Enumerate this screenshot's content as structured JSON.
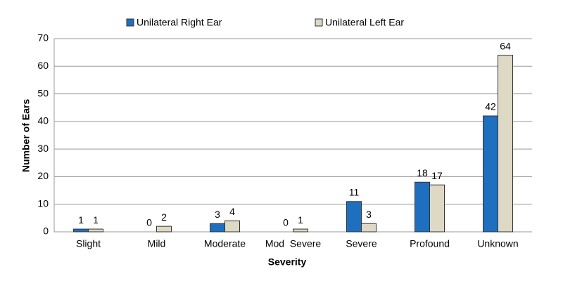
{
  "chart_data": {
    "type": "bar",
    "x_label": "Severity",
    "y_label": "Number of Ears",
    "categories": [
      "Slight",
      "Mild",
      "Moderate",
      "Mod  Severe",
      "Severe",
      "Profound",
      "Unknown"
    ],
    "series": [
      {
        "name": "Unilateral Right Ear",
        "color": "#1f6fc0",
        "values": [
          1,
          0,
          3,
          0,
          11,
          18,
          42
        ]
      },
      {
        "name": "Unilateral Left Ear",
        "color": "#ddd9c4",
        "values": [
          1,
          2,
          4,
          1,
          3,
          17,
          64
        ]
      }
    ],
    "ylim": [
      0,
      70
    ],
    "yticks": [
      0,
      10,
      20,
      30,
      40,
      50,
      60,
      70
    ],
    "grid": true,
    "legend": "top"
  }
}
